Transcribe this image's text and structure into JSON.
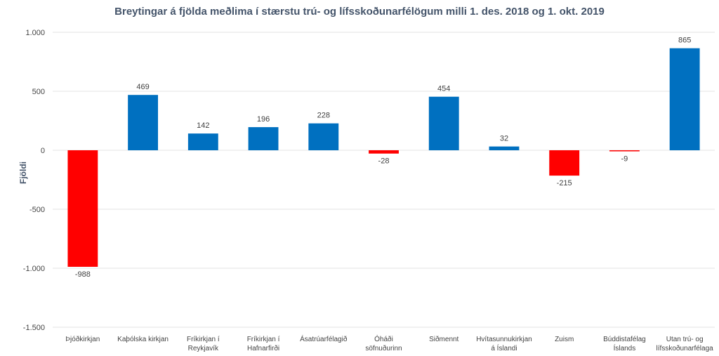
{
  "chart_data": {
    "type": "bar",
    "title": "Breytingar á fjölda meðlima í stærstu trú- og lífsskoðunarfélögum milli 1. des. 2018 og 1. okt. 2019",
    "ylabel": "Fjöldi",
    "xlabel": "",
    "ylim": [
      -1500,
      1000
    ],
    "yticks": [
      1000,
      500,
      0,
      -500,
      -1000,
      -1500
    ],
    "ytick_labels": [
      "1.000",
      "500",
      "0",
      "-500",
      "-1.000",
      "-1.500"
    ],
    "grid": true,
    "categories": [
      [
        "Þjóðkirkjan"
      ],
      [
        "Kaþólska kirkjan"
      ],
      [
        "Fríkirkjan í",
        "Reykjavík"
      ],
      [
        "Fríkirkjan í",
        "Hafnarfirði"
      ],
      [
        "Ásatrúarfélagið"
      ],
      [
        "Óháði",
        "söfnuðurinn"
      ],
      [
        "Siðmennt"
      ],
      [
        "Hvítasunnukirkjan",
        "á Íslandi"
      ],
      [
        "Zuism"
      ],
      [
        "Búddistafélag",
        "Íslands"
      ],
      [
        "Utan trú- og",
        "lífsskoðunarfélaga"
      ]
    ],
    "values": [
      -988,
      469,
      142,
      196,
      228,
      -28,
      454,
      32,
      -215,
      -9,
      865
    ],
    "value_labels": [
      "-988",
      "469",
      "142",
      "196",
      "228",
      "-28",
      "454",
      "32",
      "-215",
      "-9",
      "865"
    ],
    "colors": {
      "positive": "#0070c0",
      "negative": "#ff0000",
      "grid": "#e3e3e3"
    }
  }
}
